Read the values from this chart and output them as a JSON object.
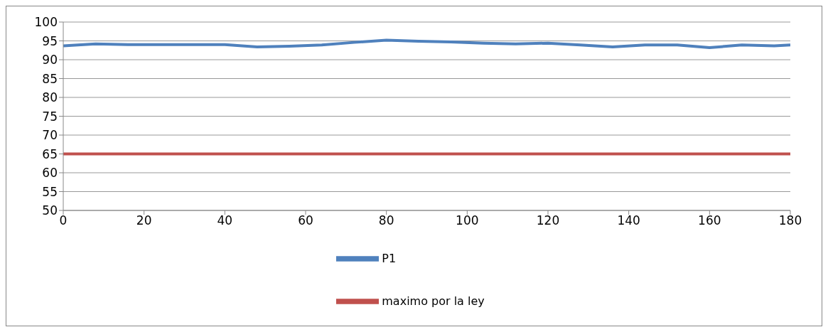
{
  "chart_data": {
    "type": "line",
    "series": [
      {
        "name": "P1",
        "color": "#4f81bd",
        "x": [
          0,
          8,
          16,
          24,
          32,
          40,
          48,
          56,
          64,
          72,
          80,
          88,
          96,
          104,
          112,
          120,
          128,
          136,
          144,
          152,
          160,
          168,
          176,
          180
        ],
        "values": [
          93.7,
          94.2,
          94.0,
          94.0,
          94.0,
          94.0,
          93.4,
          93.6,
          93.9,
          94.6,
          95.2,
          94.9,
          94.7,
          94.4,
          94.2,
          94.4,
          93.9,
          93.4,
          93.9,
          93.9,
          93.2,
          93.9,
          93.7,
          93.9
        ]
      },
      {
        "name": "maximo por la ley",
        "color": "#c0504d",
        "x": [
          0,
          180
        ],
        "values": [
          65,
          65
        ]
      }
    ],
    "xlim": [
      0,
      180
    ],
    "xticks": [
      0,
      20,
      40,
      60,
      80,
      100,
      120,
      140,
      160,
      180
    ],
    "ylim": [
      50,
      100
    ],
    "yticks": [
      50,
      55,
      60,
      65,
      70,
      75,
      80,
      85,
      90,
      95,
      100
    ],
    "grid": "y",
    "legend": "bottom",
    "marker": "none"
  }
}
